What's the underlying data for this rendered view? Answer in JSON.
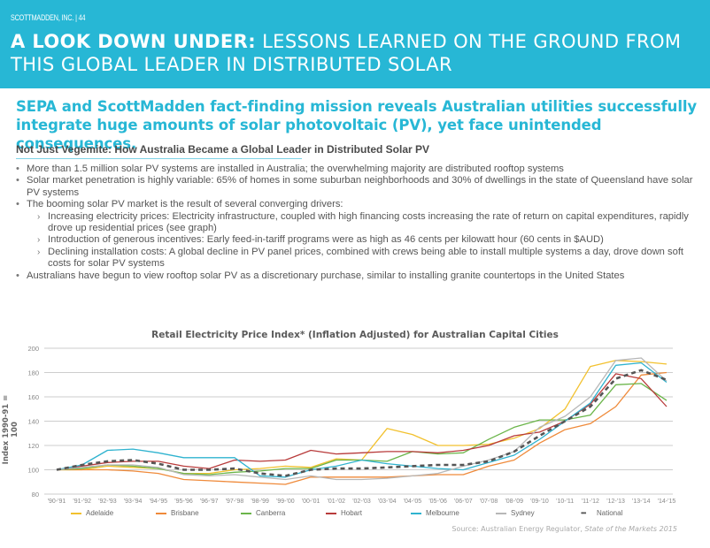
{
  "header": {
    "page_label": "SCOTTMADDEN, INC. | 44",
    "title_bold": "A LOOK DOWN UNDER:",
    "title_rest": " LESSONS LEARNED ON THE GROUND FROM THIS GLOBAL LEADER IN DISTRIBUTED SOLAR",
    "background_color": "#27b7d5"
  },
  "subtitle": "SEPA and ScottMadden fact-finding mission reveals Australian utilities successfully integrate huge amounts of solar photovoltaic (PV), yet face unintended consequences.",
  "section": {
    "heading": "Not Just Vegemite: How Australia Became a Global Leader in Distributed Solar PV",
    "bullet_marker": "•",
    "sub_marker": "›",
    "bullets": [
      {
        "text": "More than 1.5 million solar PV systems are installed in Australia; the overwhelming majority are distributed rooftop systems"
      },
      {
        "text": "Solar market penetration is highly variable: 65% of homes in some suburban neighborhoods and 30% of dwellings in the state of Queensland have solar PV systems"
      },
      {
        "text": "The booming solar PV market is the result of several converging drivers:"
      },
      {
        "text": "Australians have begun to view rooftop solar PV as a discretionary purchase, similar to installing granite countertops in the United States"
      }
    ],
    "sub_bullets": [
      {
        "text": "Increasing electricity prices: Electricity infrastructure, coupled with high financing costs increasing the rate of return on capital expenditures, rapidly drove up residential prices (see graph)"
      },
      {
        "text": "Introduction of generous incentives: Early feed-in-tariff programs were as high as 46 cents per kilowatt hour (60 cents in $AUD)"
      },
      {
        "text": "Declining installation costs: A global decline in PV panel prices, combined with crews being able to install multiple systems a day, drove down soft costs for solar PV systems"
      }
    ]
  },
  "source": {
    "prefix": "Source: Australian Energy Regulator, ",
    "title": "State of the Markets 2015"
  },
  "chart_data": {
    "type": "line",
    "title": "Retail Electricity Price Index* (Inflation Adjusted) for Australian Capital Cities",
    "xlabel": "",
    "ylabel": "Index 1990-91 = 100",
    "ylim": [
      80,
      200
    ],
    "yticks": [
      80,
      100,
      120,
      140,
      160,
      180,
      200
    ],
    "grid": true,
    "legend_position": "bottom",
    "categories": [
      "'90-'91",
      "'91-'92",
      "'92-'93",
      "'93-'94",
      "'94-'95",
      "'95-'96",
      "'96-'97",
      "'97-'98",
      "'98-'99",
      "'99-'00",
      "'00-'01",
      "'01-'02",
      "'02-'03",
      "'03-'04",
      "'04-'05",
      "'05-'06",
      "'06-'07",
      "'07-'08",
      "'08-'09",
      "'09-'10",
      "'10-'11",
      "'11-'12",
      "'12-'13",
      "'13-'14",
      "'14-'15"
    ],
    "series": [
      {
        "name": "Adelaide",
        "color": "#f2c12e",
        "dashed": false,
        "values": [
          100,
          100,
          103,
          102,
          101,
          97,
          97,
          100,
          101,
          103,
          102,
          109,
          108,
          134,
          129,
          120,
          120,
          121,
          126,
          134,
          150,
          185,
          190,
          189,
          187
        ]
      },
      {
        "name": "Brisbane",
        "color": "#ef8a3a",
        "dashed": false,
        "values": [
          100,
          100,
          100,
          99,
          97,
          92,
          91,
          90,
          89,
          88,
          94,
          94,
          94,
          94,
          95,
          96,
          96,
          103,
          108,
          122,
          133,
          138,
          152,
          178,
          180
        ]
      },
      {
        "name": "Canberra",
        "color": "#6bb54a",
        "dashed": false,
        "values": [
          100,
          101,
          104,
          103,
          101,
          97,
          96,
          98,
          99,
          101,
          101,
          108,
          108,
          107,
          115,
          113,
          114,
          125,
          135,
          141,
          141,
          145,
          170,
          171,
          157
        ]
      },
      {
        "name": "Hobart",
        "color": "#b83b3b",
        "dashed": false,
        "values": [
          100,
          103,
          106,
          107,
          107,
          103,
          101,
          108,
          107,
          108,
          116,
          113,
          114,
          115,
          115,
          114,
          116,
          120,
          128,
          131,
          140,
          154,
          179,
          175,
          152
        ]
      },
      {
        "name": "Melbourne",
        "color": "#2fb3cf",
        "dashed": false,
        "values": [
          100,
          104,
          116,
          117,
          114,
          110,
          110,
          110,
          95,
          94,
          100,
          103,
          108,
          105,
          103,
          101,
          100,
          106,
          112,
          125,
          140,
          155,
          186,
          188,
          172
        ]
      },
      {
        "name": "Sydney",
        "color": "#b7b7b7",
        "dashed": false,
        "values": [
          100,
          102,
          104,
          104,
          102,
          96,
          95,
          96,
          94,
          92,
          95,
          92,
          92,
          93,
          95,
          97,
          103,
          108,
          115,
          135,
          144,
          160,
          190,
          192,
          173
        ]
      },
      {
        "name": "National",
        "color": "#555555",
        "dashed": true,
        "values": [
          100,
          104,
          107,
          108,
          105,
          100,
          100,
          101,
          97,
          95,
          100,
          101,
          101,
          102,
          103,
          104,
          104,
          107,
          115,
          128,
          140,
          152,
          175,
          182,
          174
        ]
      }
    ]
  }
}
